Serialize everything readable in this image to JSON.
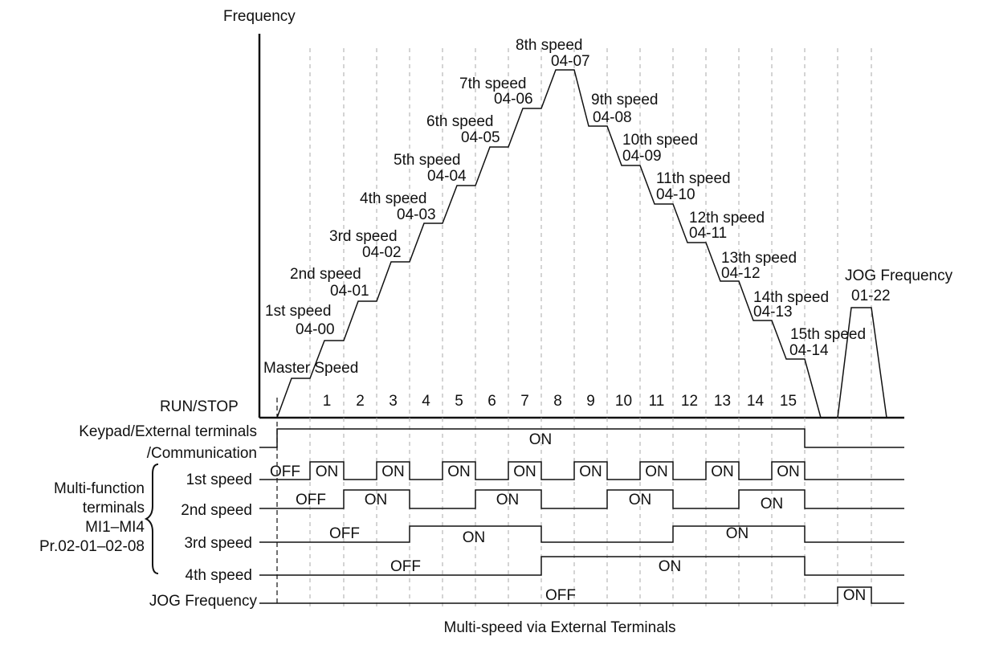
{
  "y_axis_label": "Frequency",
  "master_speed_label": "Master Speed",
  "run_stop_label": "RUN/STOP",
  "step_labels": [
    "1",
    "2",
    "3",
    "4",
    "5",
    "6",
    "7",
    "8",
    "9",
    "10",
    "11",
    "12",
    "13",
    "14",
    "15"
  ],
  "speed_levels": [
    {
      "name": "1st speed",
      "param": "04-00"
    },
    {
      "name": "2nd speed",
      "param": "04-01"
    },
    {
      "name": "3rd speed",
      "param": "04-02"
    },
    {
      "name": "4th speed",
      "param": "04-03"
    },
    {
      "name": "5th speed",
      "param": "04-04"
    },
    {
      "name": "6th speed",
      "param": "04-05"
    },
    {
      "name": "7th speed",
      "param": "04-06"
    },
    {
      "name": "8th speed",
      "param": "04-07"
    },
    {
      "name": "9th speed",
      "param": "04-08"
    },
    {
      "name": "10th speed",
      "param": "04-09"
    },
    {
      "name": "11th speed",
      "param": "04-10"
    },
    {
      "name": "12th speed",
      "param": "04-11"
    },
    {
      "name": "13th speed",
      "param": "04-12"
    },
    {
      "name": "14th speed",
      "param": "04-13"
    },
    {
      "name": "15th speed",
      "param": "04-14"
    }
  ],
  "jog": {
    "name": "JOG Frequency",
    "param": "01-22"
  },
  "signals": {
    "keypad_line1": "Keypad/External terminals",
    "keypad_line2": "/Communication",
    "mf_group": [
      "Multi-function",
      "terminals",
      "MI1–MI4",
      "Pr.02-01–02-08"
    ],
    "speed1": "1st speed",
    "speed2": "2nd speed",
    "speed3": "3rd speed",
    "speed4": "4th speed",
    "jog_signal": "JOG Frequency"
  },
  "state_on": "ON",
  "state_off": "OFF",
  "caption": "Multi-speed via External Terminals"
}
